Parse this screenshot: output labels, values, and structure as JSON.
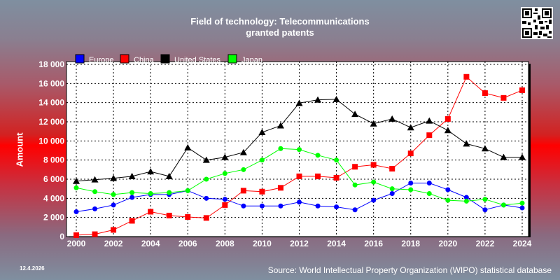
{
  "chart_data": {
    "type": "line",
    "title": "Field of technology: Telecommunications",
    "subtitle": "granted patents",
    "ylabel": "Amount",
    "ylim": [
      0,
      18000
    ],
    "yticks": [
      "0",
      "2 000",
      "4 000",
      "6 000",
      "8 000",
      "10 000",
      "12 000",
      "14 000",
      "16 000",
      "18 000"
    ],
    "xlim": [
      2000,
      2024
    ],
    "xticks": [
      "2000",
      "2002",
      "2004",
      "2006",
      "2008",
      "2010",
      "2012",
      "2014",
      "2016",
      "2018",
      "2020",
      "2022",
      "2024"
    ],
    "grid": true,
    "legend_position": "top-left",
    "x": [
      2000,
      2001,
      2002,
      2003,
      2004,
      2005,
      2006,
      2007,
      2008,
      2009,
      2010,
      2011,
      2012,
      2013,
      2014,
      2015,
      2016,
      2017,
      2018,
      2019,
      2020,
      2021,
      2022,
      2023,
      2024
    ],
    "series": [
      {
        "name": "Europe",
        "color": "#0000ff",
        "marker": "circle",
        "values": [
          2600,
          2900,
          3300,
          4100,
          4400,
          4400,
          4800,
          4000,
          3900,
          3200,
          3200,
          3200,
          3600,
          3200,
          3100,
          2800,
          3800,
          4500,
          5600,
          5600,
          4900,
          4100,
          2800,
          3300,
          3000
        ]
      },
      {
        "name": "China",
        "color": "#ff0000",
        "marker": "square",
        "values": [
          150,
          250,
          700,
          1650,
          2600,
          2200,
          2050,
          1950,
          3300,
          4800,
          4700,
          5100,
          6300,
          6300,
          6150,
          7300,
          7500,
          7100,
          8700,
          10600,
          12300,
          16700,
          15000,
          14500,
          15300
        ]
      },
      {
        "name": "United States",
        "color": "#000000",
        "marker": "triangle",
        "values": [
          5800,
          5950,
          6100,
          6300,
          6800,
          6300,
          9300,
          8000,
          8300,
          8800,
          10900,
          11600,
          13950,
          14300,
          14350,
          12800,
          11800,
          12300,
          11400,
          12100,
          11100,
          9700,
          9200,
          8300,
          8300
        ]
      },
      {
        "name": "Japan",
        "color": "#00ff00",
        "marker": "circle",
        "values": [
          5100,
          4700,
          4400,
          4600,
          4500,
          4600,
          4800,
          6000,
          6600,
          7000,
          8000,
          9200,
          9100,
          8500,
          8000,
          5400,
          5700,
          5000,
          4900,
          4500,
          3800,
          3700,
          3900,
          3300,
          3500
        ]
      }
    ]
  },
  "footer": {
    "date": "12.4.2026",
    "source": "Source: World Intellectual Property Organization (WIPO) statistical database"
  }
}
